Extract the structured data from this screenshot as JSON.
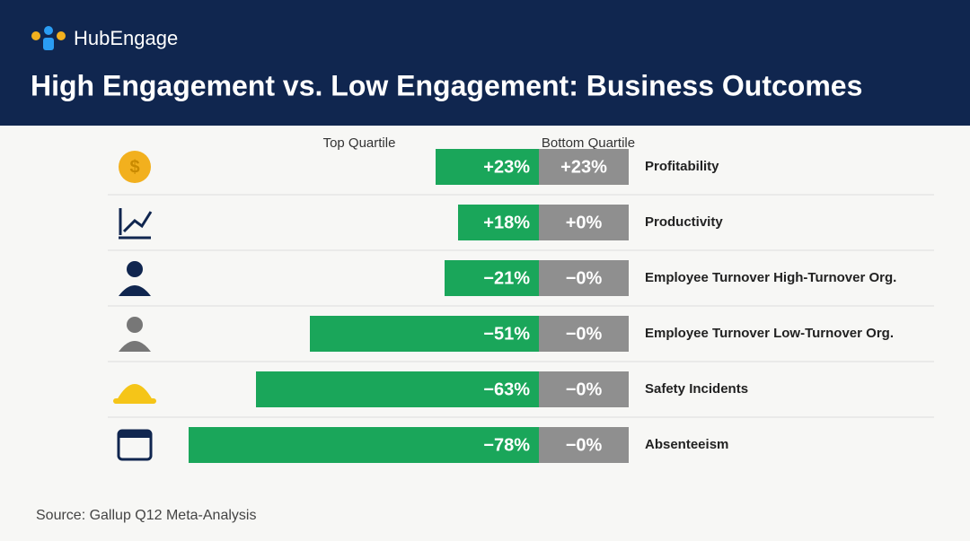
{
  "chart_data": {
    "type": "diverging-bar",
    "brand": "HubEngage",
    "title": "High Engagement vs. Low Engagement: Business Outcomes",
    "categories": [
      "Profitability",
      "Productivity",
      "Employee Turnover High-Turnover Org.",
      "Employee Turnover Low-Turnover Org.",
      "Safety Incidents",
      "Absenteeism"
    ],
    "series": [
      {
        "name": "Top Quartile",
        "color": "#1aa65a",
        "values": [
          23,
          18,
          -21,
          -51,
          -63,
          -78
        ],
        "value_labels": [
          "+23%",
          "+18%",
          "−21%",
          "−51%",
          "−63%",
          "−78%"
        ]
      },
      {
        "name": "Bottom Quartile",
        "color": "#8f8f8f",
        "values": [
          23,
          0,
          0,
          0,
          0,
          0
        ],
        "value_labels": [
          "+23%",
          "+0%",
          "−0%",
          "−0%",
          "−0%",
          "−0%"
        ]
      }
    ],
    "source": "Source: Gallup Q12 Meta-Analysis"
  }
}
